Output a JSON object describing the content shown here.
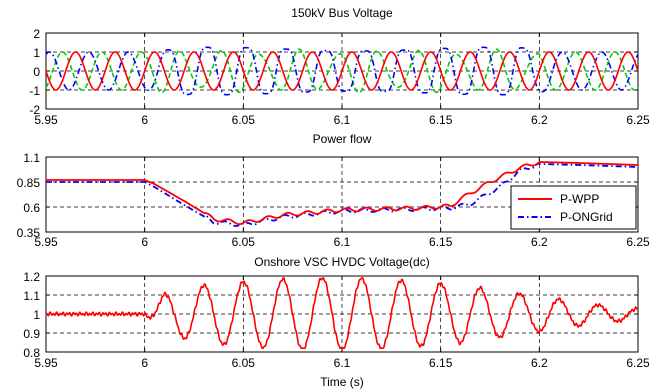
{
  "x_ticks": [
    "5.95",
    "6",
    "6.05",
    "6.1",
    "6.15",
    "6.2",
    "6.25"
  ],
  "xlabel": "Time (s)",
  "legend": {
    "entries": [
      {
        "label": "P-WPP",
        "color": "#ff0000",
        "dash": "solid"
      },
      {
        "label": "P-ONGrid",
        "color": "#0000ff",
        "dash": "dashdot"
      }
    ]
  },
  "chart_data": [
    {
      "type": "line",
      "title": "150kV Bus Voltage",
      "xlim": [
        5.95,
        6.25
      ],
      "ylim": [
        -2,
        2
      ],
      "y_ticks": [
        "2",
        "1",
        "0",
        "-1",
        "-2"
      ],
      "grid": true,
      "series": [
        {
          "color": "#ff0000",
          "style": "solid",
          "frequency_hz": 50,
          "amplitude": 1,
          "phase_deg": 0
        },
        {
          "color": "#0000ff",
          "style": "dashdot",
          "frequency_hz": 50,
          "amplitude_pre_6s": 1,
          "amplitude_post_6s_peak": 1.4,
          "phase_deg": -120
        },
        {
          "color": "#00cc00",
          "style": "dashed",
          "frequency_hz": 50,
          "amplitude": 1,
          "phase_deg": 120
        }
      ]
    },
    {
      "type": "line",
      "title": "Power flow",
      "xlim": [
        5.95,
        6.25
      ],
      "ylim": [
        0.35,
        1.1
      ],
      "y_ticks": [
        "1.1",
        "0.85",
        "0.6",
        "0.35"
      ],
      "grid": true,
      "legend_position": "lower-right",
      "series": [
        {
          "name": "P-WPP",
          "color": "#ff0000",
          "style": "solid",
          "x": [
            5.95,
            6.0,
            6.005,
            6.02,
            6.035,
            6.05,
            6.07,
            6.1,
            6.12,
            6.14,
            6.155,
            6.16,
            6.175,
            6.19,
            6.2,
            6.22,
            6.25
          ],
          "y": [
            0.87,
            0.87,
            0.83,
            0.66,
            0.48,
            0.44,
            0.52,
            0.57,
            0.58,
            0.59,
            0.61,
            0.68,
            0.85,
            0.99,
            1.05,
            1.04,
            1.02
          ]
        },
        {
          "name": "P-ONGrid",
          "color": "#0000ff",
          "style": "dashdot",
          "x": [
            5.95,
            6.0,
            6.005,
            6.02,
            6.035,
            6.05,
            6.07,
            6.1,
            6.12,
            6.14,
            6.155,
            6.165,
            6.18,
            6.19,
            6.2,
            6.22,
            6.25
          ],
          "y": [
            0.85,
            0.85,
            0.8,
            0.62,
            0.45,
            0.42,
            0.5,
            0.56,
            0.57,
            0.58,
            0.59,
            0.63,
            0.8,
            0.96,
            1.03,
            1.02,
            1.0
          ]
        }
      ]
    },
    {
      "type": "line",
      "title": "Onshore VSC HVDC Voltage(dc)",
      "xlim": [
        5.95,
        6.25
      ],
      "ylim": [
        0.8,
        1.2
      ],
      "y_ticks": [
        "1.2",
        "1.1",
        "1",
        "0.9",
        "0.8"
      ],
      "grid": true,
      "series": [
        {
          "color": "#ff0000",
          "style": "solid",
          "baseline": 1.0,
          "oscillation_start": 6.0,
          "oscillation_frequency_hz": 50,
          "peak_amplitude": 0.19,
          "min_value": 0.82,
          "max_value": 1.19
        }
      ]
    }
  ]
}
